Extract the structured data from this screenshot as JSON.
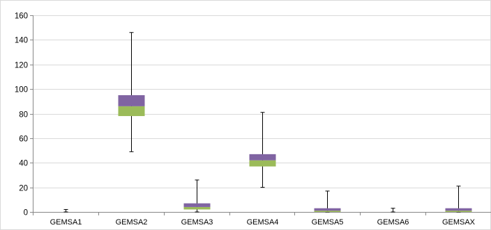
{
  "chart_data": {
    "type": "box",
    "categories": [
      "GEMSA1",
      "GEMSA2",
      "GEMSA3",
      "GEMSA4",
      "GEMSA5",
      "GEMSA6",
      "GEMSAX"
    ],
    "series": [
      {
        "values": [
          {
            "min": 0,
            "q1": 0,
            "median": 0,
            "q3": 0,
            "max": 2
          },
          {
            "min": 49,
            "q1": 78,
            "median": 86,
            "q3": 95,
            "max": 146
          },
          {
            "min": 0,
            "q1": 2,
            "median": 4,
            "q3": 7,
            "max": 26
          },
          {
            "min": 20,
            "q1": 37,
            "median": 42,
            "q3": 47,
            "max": 81
          },
          {
            "min": 0,
            "q1": 0,
            "median": 1,
            "q3": 3,
            "max": 17
          },
          {
            "min": 0,
            "q1": 0,
            "median": 0,
            "q3": 0,
            "max": 3
          },
          {
            "min": 0,
            "q1": 0,
            "median": 1,
            "q3": 3,
            "max": 21
          }
        ]
      }
    ],
    "ylim": [
      0,
      160
    ],
    "yticks": [
      0,
      20,
      40,
      60,
      80,
      100,
      120,
      140,
      160
    ],
    "grid": true,
    "colors": {
      "lower_box": "#9bbb59",
      "upper_box": "#8064a2",
      "whisker": "#000000",
      "grid": "#d9d9d9",
      "axis": "#868686"
    }
  }
}
